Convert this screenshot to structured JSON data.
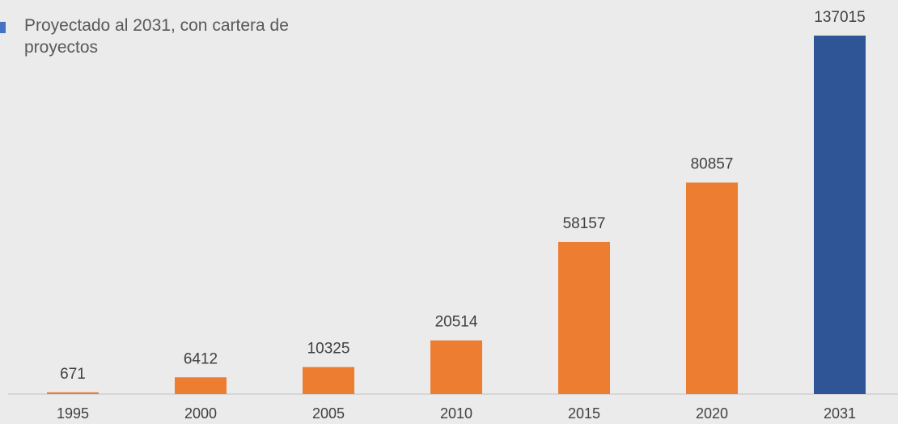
{
  "chart_data": {
    "type": "bar",
    "categories": [
      "1995",
      "2000",
      "2005",
      "2010",
      "2015",
      "2020",
      "2031"
    ],
    "values": [
      671,
      6412,
      10325,
      20514,
      58157,
      80857,
      137015
    ],
    "colors": [
      "#ed7d31",
      "#ed7d31",
      "#ed7d31",
      "#ed7d31",
      "#ed7d31",
      "#ed7d31",
      "#2f5597"
    ],
    "legend": [
      {
        "label": "Proyectado al 2031, con cartera de proyectos",
        "color": "#4472c4"
      }
    ]
  }
}
